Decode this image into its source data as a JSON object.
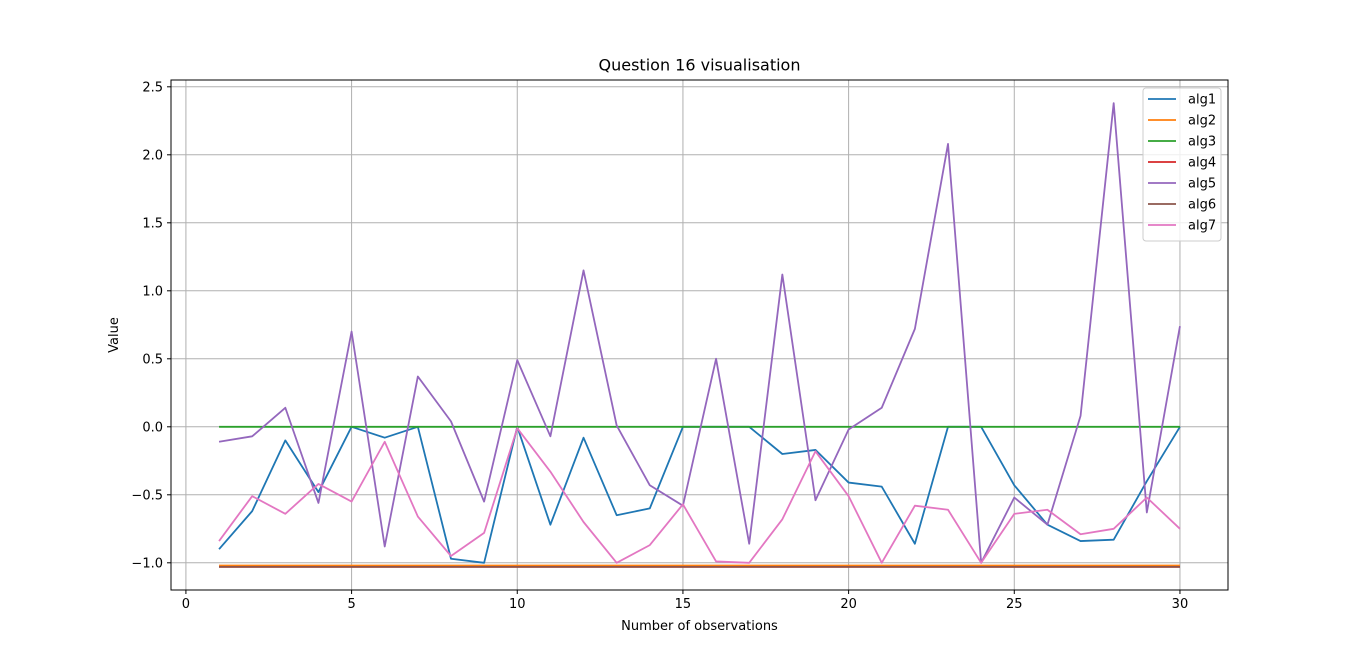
{
  "chart_data": {
    "type": "line",
    "title": "Question 16 visualisation",
    "xlabel": "Number of observations",
    "ylabel": "Value",
    "xlim": [
      -0.45,
      31.45
    ],
    "ylim": [
      -1.2,
      2.55
    ],
    "xticks": [
      0,
      5,
      10,
      15,
      20,
      25,
      30
    ],
    "yticks": [
      -1.0,
      -0.5,
      0.0,
      0.5,
      1.0,
      1.5,
      2.0,
      2.5
    ],
    "xtick_labels": [
      "0",
      "5",
      "10",
      "15",
      "20",
      "25",
      "30"
    ],
    "ytick_labels": [
      "−1.0",
      "−0.5",
      "0.0",
      "0.5",
      "1.0",
      "1.5",
      "2.0",
      "2.5"
    ],
    "grid": true,
    "legend_position": "top-right",
    "x": [
      1,
      2,
      3,
      4,
      5,
      6,
      7,
      8,
      9,
      10,
      11,
      12,
      13,
      14,
      15,
      16,
      17,
      18,
      19,
      20,
      21,
      22,
      23,
      24,
      25,
      26,
      27,
      28,
      29,
      30
    ],
    "series": [
      {
        "name": "alg1",
        "color": "#1f77b4",
        "values": [
          -0.9,
          -0.62,
          -0.1,
          -0.48,
          0.0,
          -0.08,
          0.0,
          -0.97,
          -1.0,
          0.0,
          -0.72,
          -0.08,
          -0.65,
          -0.6,
          0.0,
          0.0,
          0.0,
          -0.2,
          -0.17,
          -0.41,
          -0.44,
          -0.86,
          0.0,
          0.0,
          -0.43,
          -0.72,
          -0.84,
          -0.83,
          -0.4,
          0.0
        ]
      },
      {
        "name": "alg2",
        "color": "#ff7f0e",
        "values": [
          -1.02,
          -1.02,
          -1.02,
          -1.02,
          -1.02,
          -1.02,
          -1.02,
          -1.02,
          -1.02,
          -1.02,
          -1.02,
          -1.02,
          -1.02,
          -1.02,
          -1.02,
          -1.02,
          -1.02,
          -1.02,
          -1.02,
          -1.02,
          -1.02,
          -1.02,
          -1.02,
          -1.02,
          -1.02,
          -1.02,
          -1.02,
          -1.02,
          -1.02,
          -1.02
        ]
      },
      {
        "name": "alg3",
        "color": "#2ca02c",
        "values": [
          0.0,
          0.0,
          0.0,
          0.0,
          0.0,
          0.0,
          0.0,
          0.0,
          0.0,
          0.0,
          0.0,
          0.0,
          0.0,
          0.0,
          0.0,
          0.0,
          0.0,
          0.0,
          0.0,
          0.0,
          0.0,
          0.0,
          0.0,
          0.0,
          0.0,
          0.0,
          0.0,
          0.0,
          0.0,
          0.0
        ]
      },
      {
        "name": "alg4",
        "color": "#d62728",
        "values": [
          -1.03,
          -1.03,
          -1.03,
          -1.03,
          -1.03,
          -1.03,
          -1.03,
          -1.03,
          -1.03,
          -1.03,
          -1.03,
          -1.03,
          -1.03,
          -1.03,
          -1.03,
          -1.03,
          -1.03,
          -1.03,
          -1.03,
          -1.03,
          -1.03,
          -1.03,
          -1.03,
          -1.03,
          -1.03,
          -1.03,
          -1.03,
          -1.03,
          -1.03,
          -1.03
        ]
      },
      {
        "name": "alg5",
        "color": "#9467bd",
        "values": [
          -0.11,
          -0.07,
          0.14,
          -0.56,
          0.7,
          -0.88,
          0.37,
          0.04,
          -0.55,
          0.49,
          -0.07,
          1.15,
          0.01,
          -0.43,
          -0.58,
          0.5,
          -0.86,
          1.12,
          -0.54,
          -0.02,
          0.14,
          0.72,
          2.08,
          -1.0,
          -0.52,
          -0.72,
          0.08,
          2.38,
          -0.63,
          0.74
        ]
      },
      {
        "name": "alg6",
        "color": "#8c564b",
        "values": [
          -1.03,
          -1.03,
          -1.03,
          -1.03,
          -1.03,
          -1.03,
          -1.03,
          -1.03,
          -1.03,
          -1.03,
          -1.03,
          -1.03,
          -1.03,
          -1.03,
          -1.03,
          -1.03,
          -1.03,
          -1.03,
          -1.03,
          -1.03,
          -1.03,
          -1.03,
          -1.03,
          -1.03,
          -1.03,
          -1.03,
          -1.03,
          -1.03,
          -1.03,
          -1.03
        ]
      },
      {
        "name": "alg7",
        "color": "#e377c2",
        "values": [
          -0.84,
          -0.51,
          -0.64,
          -0.42,
          -0.55,
          -0.11,
          -0.66,
          -0.95,
          -0.78,
          -0.01,
          -0.33,
          -0.7,
          -1.0,
          -0.87,
          -0.57,
          -0.99,
          -1.0,
          -0.68,
          -0.18,
          -0.51,
          -1.0,
          -0.58,
          -0.61,
          -1.0,
          -0.64,
          -0.61,
          -0.79,
          -0.75,
          -0.52,
          -0.75
        ]
      }
    ]
  }
}
